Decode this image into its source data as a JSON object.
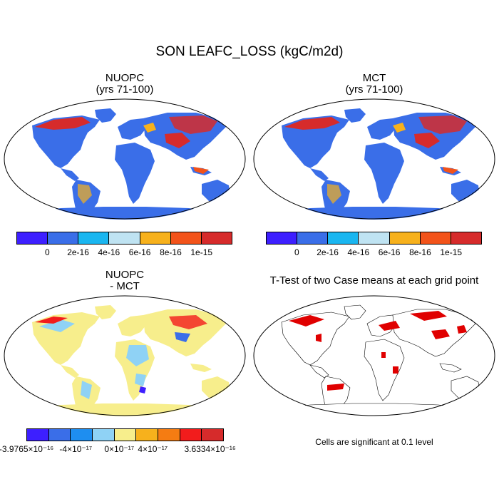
{
  "title": "SON LEAFC_LOSS (kgC/m2d)",
  "panels": [
    {
      "id": "nuopc",
      "title_line1": "NUOPC",
      "title_line2": "(yrs 71-100)"
    },
    {
      "id": "mct",
      "title_line1": "MCT",
      "title_line2": "(yrs 71-100)"
    },
    {
      "id": "diff",
      "title_line1": "NUOPC",
      "title_line2": "- MCT"
    },
    {
      "id": "ttest",
      "title_line1": "T-Test of two Case means at each grid point",
      "title_line2": ""
    }
  ],
  "colorbar_top": {
    "colors": [
      "#3d1fff",
      "#3a6ee8",
      "#1ab6f0",
      "#bfe3f2",
      "#f7b11c",
      "#f2531a",
      "#d62b2b"
    ],
    "ticks": [
      "0",
      "2e-16",
      "4e-16",
      "6e-16",
      "8e-16",
      "1e-15"
    ]
  },
  "colorbar_diff": {
    "colors": [
      "#3d1fff",
      "#3a6ee8",
      "#1e8ef0",
      "#8fd2f5",
      "#f7ee8c",
      "#f7b11c",
      "#f57c12",
      "#f21c1c",
      "#d62b2b"
    ],
    "ticks": [
      "-3.9765×10⁻¹⁶",
      "-4×10⁻¹⁷",
      "0×10⁻¹⁷",
      "4×10⁻¹⁷",
      "3.6334×10⁻¹⁶"
    ]
  },
  "ttest_note": "Cells are significant at 0.1 level"
}
